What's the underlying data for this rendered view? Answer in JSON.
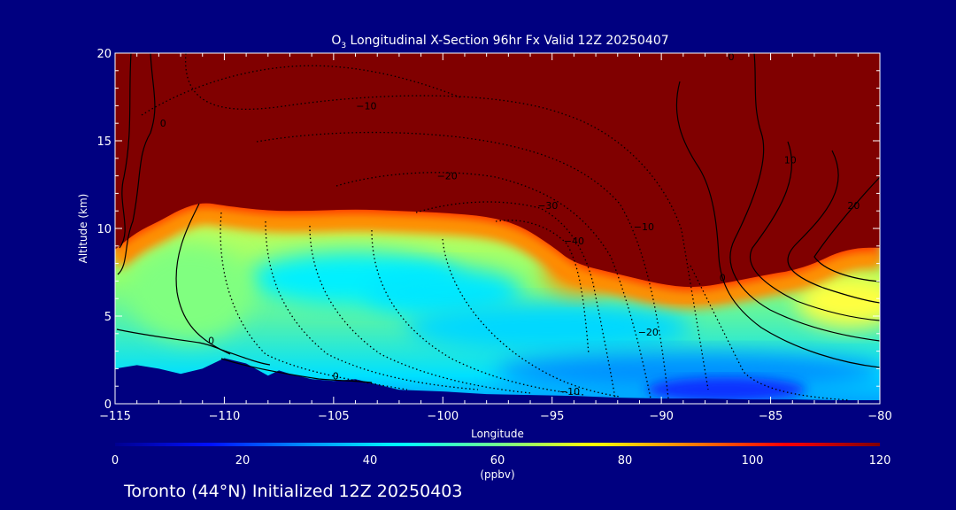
{
  "chart_data": {
    "type": "heatmap",
    "title_prefix": "O",
    "title_sub": "3",
    "title_rest": " Longitudinal X-Section 96hr  Fx Valid 12Z 20250407",
    "xlabel": "Longitude",
    "ylabel": "Altitude (km)",
    "xlim": [
      -115,
      -80
    ],
    "ylim": [
      0,
      20
    ],
    "x_ticks": [
      {
        "value": -115,
        "label": "−115"
      },
      {
        "value": -110,
        "label": "−110"
      },
      {
        "value": -105,
        "label": "−105"
      },
      {
        "value": -100,
        "label": "−100"
      },
      {
        "value": -95,
        "label": "−95"
      },
      {
        "value": -90,
        "label": "−90"
      },
      {
        "value": -85,
        "label": "−85"
      },
      {
        "value": -80,
        "label": "−80"
      }
    ],
    "y_ticks": [
      {
        "value": 0,
        "label": "0"
      },
      {
        "value": 5,
        "label": "5"
      },
      {
        "value": 10,
        "label": "10"
      },
      {
        "value": 15,
        "label": "15"
      },
      {
        "value": 20,
        "label": "20"
      }
    ],
    "colorbar": {
      "range": [
        0,
        120
      ],
      "unit_label": "(ppbv)",
      "ticks": [
        {
          "value": 0,
          "label": "0"
        },
        {
          "value": 20,
          "label": "20"
        },
        {
          "value": 40,
          "label": "40"
        },
        {
          "value": 60,
          "label": "60"
        },
        {
          "value": 80,
          "label": "80"
        },
        {
          "value": 100,
          "label": "100"
        },
        {
          "value": 120,
          "label": "120"
        }
      ],
      "colors": [
        "#000090",
        "#0010ff",
        "#0090ff",
        "#00ffff",
        "#70ff90",
        "#ffff00",
        "#ff8000",
        "#ff0000",
        "#800000"
      ]
    },
    "colors": {
      "high": "#800000",
      "terrain": "#000080",
      "contours": "#000000"
    },
    "high_ozone_boundary_km": [
      [
        -115,
        8.8
      ],
      [
        -114,
        9.8
      ],
      [
        -113,
        10.4
      ],
      [
        -112,
        11.1
      ],
      [
        -111,
        11.5
      ],
      [
        -110,
        11.3
      ],
      [
        -108,
        11.0
      ],
      [
        -106,
        11.0
      ],
      [
        -104,
        11.1
      ],
      [
        -102,
        11.0
      ],
      [
        -100,
        10.9
      ],
      [
        -98,
        10.7
      ],
      [
        -96.5,
        10.2
      ],
      [
        -95,
        9.0
      ],
      [
        -94,
        8.0
      ],
      [
        -92,
        7.4
      ],
      [
        -90,
        6.8
      ],
      [
        -88.5,
        6.6
      ],
      [
        -87,
        6.9
      ],
      [
        -85,
        7.4
      ],
      [
        -84,
        7.6
      ],
      [
        -83,
        8.0
      ],
      [
        -82,
        8.6
      ],
      [
        -81,
        8.9
      ],
      [
        -80,
        8.9
      ]
    ],
    "terrain_km": [
      [
        -115,
        2.0
      ],
      [
        -114,
        2.2
      ],
      [
        -113,
        2.0
      ],
      [
        -112,
        1.7
      ],
      [
        -111,
        2.0
      ],
      [
        -110,
        2.6
      ],
      [
        -109,
        2.3
      ],
      [
        -108,
        1.6
      ],
      [
        -107.5,
        1.9
      ],
      [
        -107,
        1.7
      ],
      [
        -106,
        1.4
      ],
      [
        -105,
        1.3
      ],
      [
        -104,
        1.4
      ],
      [
        -103,
        1.1
      ],
      [
        -102,
        0.8
      ],
      [
        -100,
        0.7
      ],
      [
        -98,
        0.55
      ],
      [
        -96,
        0.5
      ],
      [
        -94,
        0.45
      ],
      [
        -92,
        0.35
      ],
      [
        -90,
        0.3
      ],
      [
        -88,
        0.3
      ],
      [
        -86,
        0.25
      ],
      [
        -84,
        0.25
      ],
      [
        -82,
        0.2
      ],
      [
        -80,
        0.2
      ]
    ],
    "contour_labels": [
      {
        "text": "0",
        "x": -112.8,
        "y": 15.8
      },
      {
        "text": "−10",
        "x": -103.5,
        "y": 16.8
      },
      {
        "text": "−20",
        "x": -99.8,
        "y": 12.8
      },
      {
        "text": "−30",
        "x": -95.2,
        "y": 11.1
      },
      {
        "text": "−40",
        "x": -94.0,
        "y": 9.1
      },
      {
        "text": "−10",
        "x": -90.8,
        "y": 9.9
      },
      {
        "text": "−20",
        "x": -90.6,
        "y": 3.9
      },
      {
        "text": "−10",
        "x": -94.2,
        "y": 0.5
      },
      {
        "text": "0",
        "x": -110.6,
        "y": 3.4
      },
      {
        "text": "0",
        "x": -104.9,
        "y": 1.4
      },
      {
        "text": "0",
        "x": -87.2,
        "y": 7.0
      },
      {
        "text": "0",
        "x": -86.8,
        "y": 19.6
      },
      {
        "text": "10",
        "x": -84.1,
        "y": 13.7
      },
      {
        "text": "20",
        "x": -81.2,
        "y": 11.1
      }
    ]
  },
  "footer": "Toronto (44°N) Initialized 12Z 20250403"
}
